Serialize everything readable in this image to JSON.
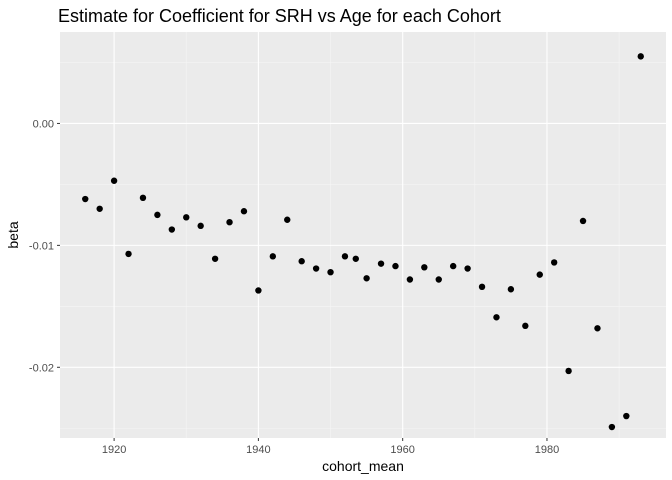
{
  "chart_data": {
    "type": "scatter",
    "title": "Estimate for Coefficient for SRH vs Age for each Cohort",
    "xlabel": "cohort_mean",
    "ylabel": "beta",
    "xlim": [
      1912.7,
      1896.3
    ],
    "ylim": [
      -0.0258,
      0.0075
    ],
    "x_ticks": [
      1920,
      1940,
      1960,
      1980
    ],
    "x_tick_labels": [
      "1920",
      "1940",
      "1960",
      "1980"
    ],
    "y_ticks": [
      0.0,
      -0.01,
      -0.02
    ],
    "y_tick_labels": [
      "0.00",
      "-0.01",
      "-0.02"
    ],
    "grid": true,
    "point_color": "#000000",
    "panel_color": "#ebebeb",
    "series": [
      {
        "x": [
          1916,
          1918,
          1920,
          1922,
          1924,
          1926,
          1928,
          1930,
          1932,
          1934,
          1936,
          1938,
          1940,
          1942,
          1944,
          1946,
          1948,
          1950,
          1952,
          1953.5,
          1955,
          1957,
          1959,
          1961,
          1963,
          1965,
          1967,
          1969,
          1971,
          1973,
          1975,
          1977,
          1979,
          1981,
          1983,
          1985,
          1987,
          1989,
          1991,
          1993
        ],
        "y": [
          -0.0062,
          -0.007,
          -0.0047,
          -0.0107,
          -0.0061,
          -0.0075,
          -0.0087,
          -0.0077,
          -0.0084,
          -0.0111,
          -0.0081,
          -0.0072,
          -0.0137,
          -0.0109,
          -0.0079,
          -0.0113,
          -0.0119,
          -0.0122,
          -0.0109,
          -0.0111,
          -0.0127,
          -0.0115,
          -0.0117,
          -0.0128,
          -0.0118,
          -0.0128,
          -0.0117,
          -0.0119,
          -0.0134,
          -0.0159,
          -0.0136,
          -0.0166,
          -0.0124,
          -0.0114,
          -0.0203,
          -0.008,
          -0.0168,
          -0.0249,
          -0.024,
          0.0055
        ]
      }
    ]
  }
}
